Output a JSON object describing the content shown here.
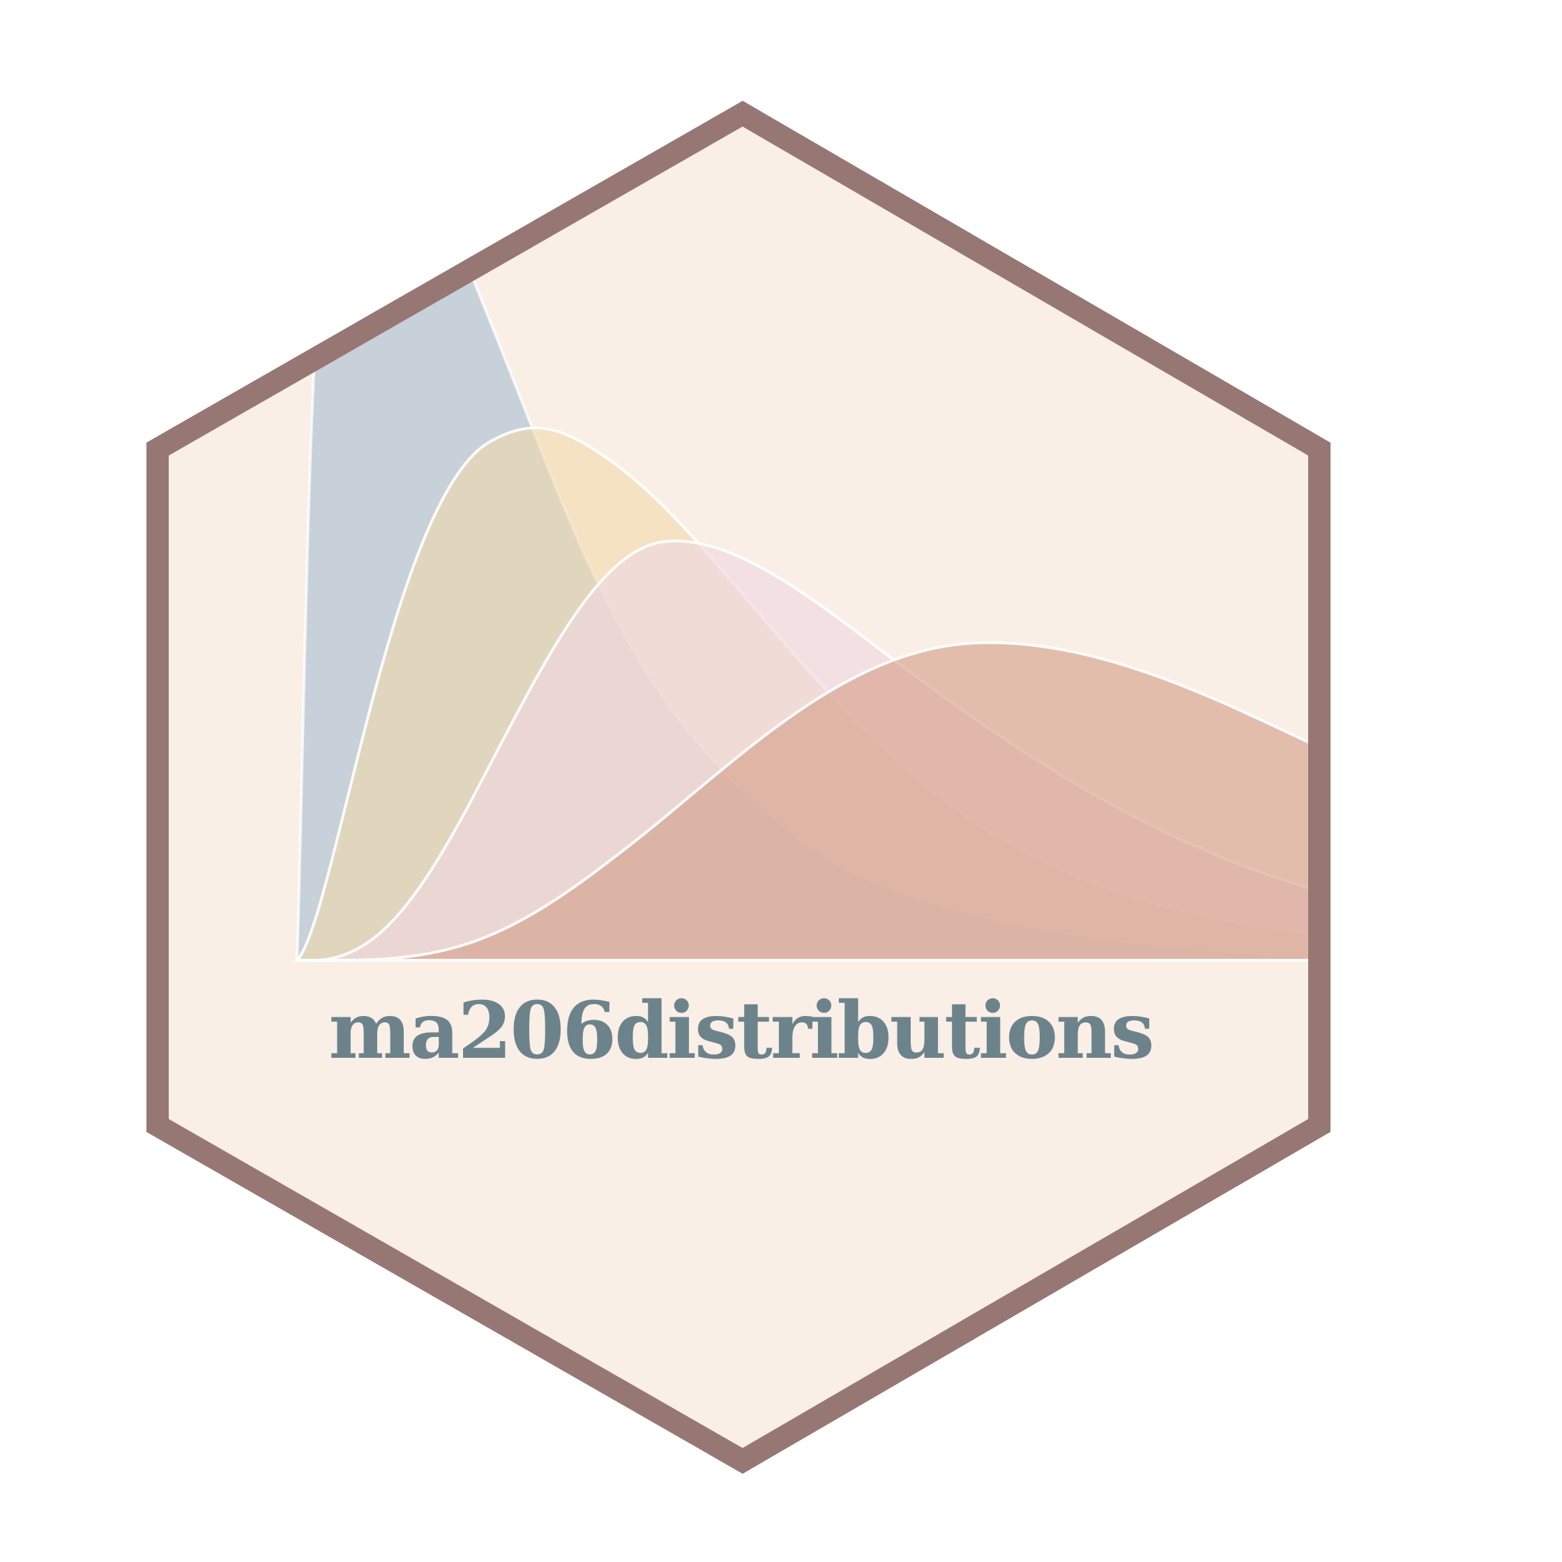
{
  "logo": {
    "package_name": "ma206distributions"
  },
  "colors": {
    "hex_fill": "#f9efe6",
    "hex_border": "#977774",
    "title_text": "#6d838c",
    "curve_outline": "#ffffff",
    "curve_fills": [
      "#c5cfd8",
      "#f0d9ab",
      "#f0d7e1",
      "#d49e88"
    ]
  },
  "icons": [
    "hexagon-sticker-icon",
    "distribution-curves-icon"
  ]
}
